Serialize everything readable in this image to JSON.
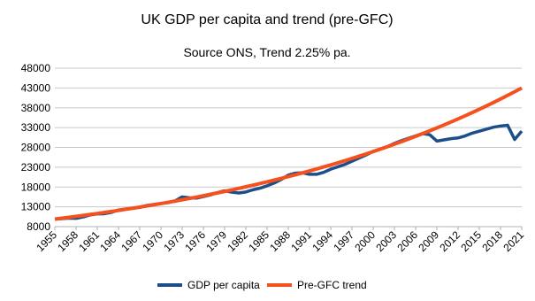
{
  "chart_data": {
    "type": "line",
    "title": "UK GDP per capita and trend (pre-GFC)",
    "subtitle": "Source ONS, Trend 2.25% pa.",
    "x": [
      1955,
      1956,
      1957,
      1958,
      1959,
      1960,
      1961,
      1962,
      1963,
      1964,
      1965,
      1966,
      1967,
      1968,
      1969,
      1970,
      1971,
      1972,
      1973,
      1974,
      1975,
      1976,
      1977,
      1978,
      1979,
      1980,
      1981,
      1982,
      1983,
      1984,
      1985,
      1986,
      1987,
      1988,
      1989,
      1990,
      1991,
      1992,
      1993,
      1994,
      1995,
      1996,
      1997,
      1998,
      1999,
      2000,
      2001,
      2002,
      2003,
      2004,
      2005,
      2006,
      2007,
      2008,
      2009,
      2010,
      2011,
      2012,
      2013,
      2014,
      2015,
      2016,
      2017,
      2018,
      2019,
      2020,
      2021
    ],
    "series": [
      {
        "name": "GDP per capita",
        "color": "#1c4f8a",
        "values": [
          9900,
          10000,
          10150,
          10100,
          10450,
          10950,
          11200,
          11250,
          11600,
          12200,
          12450,
          12650,
          12850,
          13350,
          13600,
          13850,
          14050,
          14500,
          15500,
          15300,
          15200,
          15600,
          16000,
          16600,
          17050,
          16700,
          16500,
          16750,
          17300,
          17700,
          18300,
          19000,
          19900,
          21000,
          21500,
          21600,
          21200,
          21200,
          21700,
          22500,
          23100,
          23700,
          24500,
          25300,
          26100,
          27000,
          27600,
          28200,
          29000,
          29700,
          30300,
          30900,
          31500,
          31200,
          29600,
          29900,
          30200,
          30400,
          30900,
          31600,
          32100,
          32600,
          33100,
          33400,
          33600,
          30000,
          32100
        ]
      },
      {
        "name": "Pre-GFC trend",
        "color": "#f4511e",
        "values": [
          9900,
          10123,
          10350,
          10583,
          10821,
          11065,
          11314,
          11568,
          11829,
          12095,
          12367,
          12645,
          12930,
          13221,
          13518,
          13822,
          14133,
          14451,
          14777,
          15109,
          15449,
          15797,
          16152,
          16516,
          16887,
          17267,
          17656,
          18053,
          18459,
          18875,
          19299,
          19733,
          20177,
          20631,
          21096,
          21570,
          22056,
          22552,
          23059,
          23578,
          24109,
          24651,
          25206,
          25773,
          26353,
          26946,
          27552,
          28172,
          28806,
          29454,
          30117,
          30795,
          31487,
          32196,
          32920,
          33661,
          34418,
          35193,
          35985,
          36794,
          37622,
          38469,
          39334,
          40219,
          41124,
          42050,
          42996
        ]
      }
    ],
    "xlim": [
      1955,
      2021
    ],
    "xticks": [
      1955,
      1958,
      1961,
      1964,
      1967,
      1970,
      1973,
      1976,
      1979,
      1982,
      1985,
      1988,
      1991,
      1994,
      1997,
      2000,
      2003,
      2006,
      2009,
      2012,
      2015,
      2018,
      2021
    ],
    "ylim": [
      8000,
      48000
    ],
    "yticks": [
      8000,
      13000,
      18000,
      23000,
      28000,
      33000,
      38000,
      43000,
      48000
    ],
    "grid": true,
    "legend": "bottom"
  }
}
